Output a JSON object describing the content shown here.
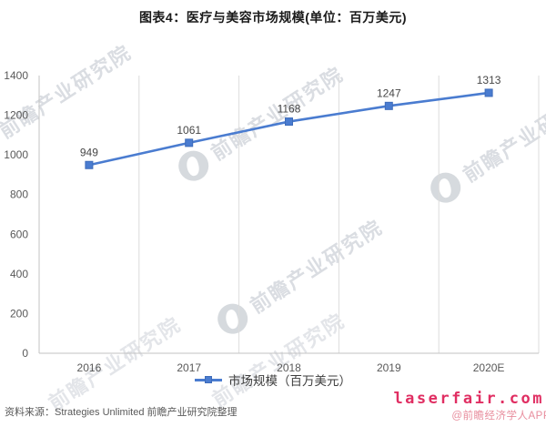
{
  "chart_data": {
    "type": "line",
    "title": "图表4：医疗与美容市场规模(单位：百万美元)",
    "categories": [
      "2016",
      "2017",
      "2018",
      "2019",
      "2020E"
    ],
    "series": [
      {
        "name": "市场规模（百万美元）",
        "values": [
          949,
          1061,
          1168,
          1247,
          1313
        ]
      }
    ],
    "data_labels": [
      949,
      1061,
      1168,
      1247,
      1313
    ],
    "ylim": [
      0,
      1400
    ],
    "ytick_step": 200,
    "ytick_labels": [
      "0",
      "200",
      "400",
      "600",
      "800",
      "1000",
      "1200",
      "1400"
    ],
    "xlabel": "",
    "ylabel": "",
    "grid": "vertical-only",
    "legend_position": "bottom",
    "marker": "square"
  },
  "legend": {
    "label": "市场规模（百万美元）"
  },
  "footer": {
    "source": "资料来源：Strategies Unlimited 前瞻产业研究院整理",
    "website": "laserfair.com",
    "credit": "@前瞻经济学人APP"
  },
  "watermark": {
    "text": "前瞻产业研究院"
  },
  "colors": {
    "line": "#4a7cd0",
    "marker_border": "#3e6cba",
    "gridline": "#dcdcdc",
    "axis": "#c3c3c3",
    "tick_label": "#595959",
    "data_label": "#474747",
    "title": "#1a1a1a",
    "source_text": "#595959",
    "website_red": "#e02e62",
    "credit_pink": "#e88d9d",
    "watermark_gray": "#dadde2"
  }
}
